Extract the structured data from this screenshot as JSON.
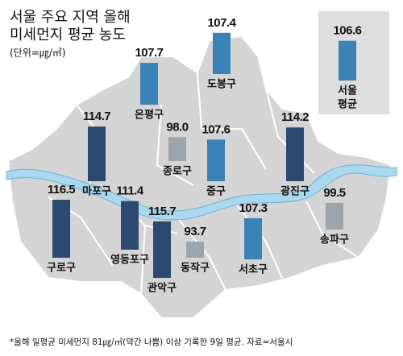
{
  "chart_data": {
    "type": "map-bar",
    "title": [
      "서울 주요 지역 올해",
      "미세먼지 평균 농도"
    ],
    "unit": "(단위=㎍/㎥)",
    "ylim": [
      85,
      120
    ],
    "bars": [
      {
        "name": "은평구",
        "value": 107.7,
        "color": "#3b82b6"
      },
      {
        "name": "도봉구",
        "value": 107.4,
        "color": "#3b82b6"
      },
      {
        "name": "마포구",
        "value": 114.7,
        "color": "#2c4a70"
      },
      {
        "name": "종로구",
        "value": 98.0,
        "value_label": "98.0",
        "color": "#9ba5ab"
      },
      {
        "name": "중구",
        "value": 107.6,
        "color": "#3b82b6"
      },
      {
        "name": "광진구",
        "value": 114.2,
        "color": "#2c4a70"
      },
      {
        "name": "구로구",
        "value": 116.5,
        "color": "#2c4a70"
      },
      {
        "name": "영등포구",
        "value": 111.4,
        "color": "#2c4a70"
      },
      {
        "name": "관악구",
        "value": 115.7,
        "color": "#2c4a70"
      },
      {
        "name": "동작구",
        "value": 93.7,
        "color": "#9ba5ab"
      },
      {
        "name": "서초구",
        "value": 107.3,
        "color": "#3b82b6"
      },
      {
        "name": "송파구",
        "value": 99.5,
        "color": "#9ba5ab"
      }
    ],
    "average": {
      "label_lines": [
        "서울",
        "평균"
      ],
      "value": 106.6,
      "color": "#3b82b6"
    },
    "footnote": "*올해 일평균 미세먼지 81㎍/㎥(약간 나쁨) 이상 기록한 9일 평균. 자료=서울시"
  }
}
